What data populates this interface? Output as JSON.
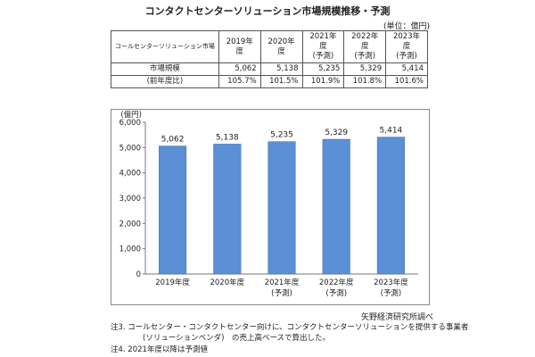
{
  "title": "コンタクトセンターソリューション市場規模推移・予測",
  "unit_label": "(単位：億円)",
  "table": {
    "corner_label": "コールセンターソリューション市場",
    "columns": [
      {
        "year": "2019年度",
        "sub": ""
      },
      {
        "year": "2020年度",
        "sub": ""
      },
      {
        "year": "2021年度",
        "sub": "(予測)"
      },
      {
        "year": "2022年度",
        "sub": "(予測)"
      },
      {
        "year": "2023年度",
        "sub": "(予測)"
      }
    ],
    "rows": [
      {
        "label": "市場規模",
        "cells": [
          "5,062",
          "5,138",
          "5,235",
          "5,329",
          "5,414"
        ]
      },
      {
        "label": "(前年度比)",
        "cells": [
          "105.7%",
          "101.5%",
          "101.9%",
          "101.8%",
          "101.6%"
        ]
      }
    ]
  },
  "chart_data": {
    "type": "bar",
    "categories": [
      "2019年度",
      "2020年度",
      "2021年度",
      "2022年度",
      "2023年度"
    ],
    "category_sublabels": [
      "",
      "",
      "(予測)",
      "(予測)",
      "(予測)"
    ],
    "values": [
      5062,
      5138,
      5235,
      5329,
      5414
    ],
    "value_labels": [
      "5,062",
      "5,138",
      "5,235",
      "5,329",
      "5,414"
    ],
    "yunit": "(億円)",
    "ylim": [
      0,
      6000
    ],
    "yticks": [
      0,
      1000,
      2000,
      3000,
      4000,
      5000,
      6000
    ],
    "ytick_labels": [
      "0",
      "1,000",
      "2,000",
      "3,000",
      "4,000",
      "5,000",
      "6,000"
    ],
    "bar_color": "#5b8fd6",
    "bar_border": "#3f6fb3",
    "grid": false
  },
  "source": "矢野経済研究所調べ",
  "notes": [
    "注3. コールセンター・コンタクトセンター向けに、コンタクトセンターソリューションを提供する事業者",
    "(ソリューションベンダ)　の売上高ベースで算出した。",
    "注4. 2021年度以降は予測値"
  ]
}
